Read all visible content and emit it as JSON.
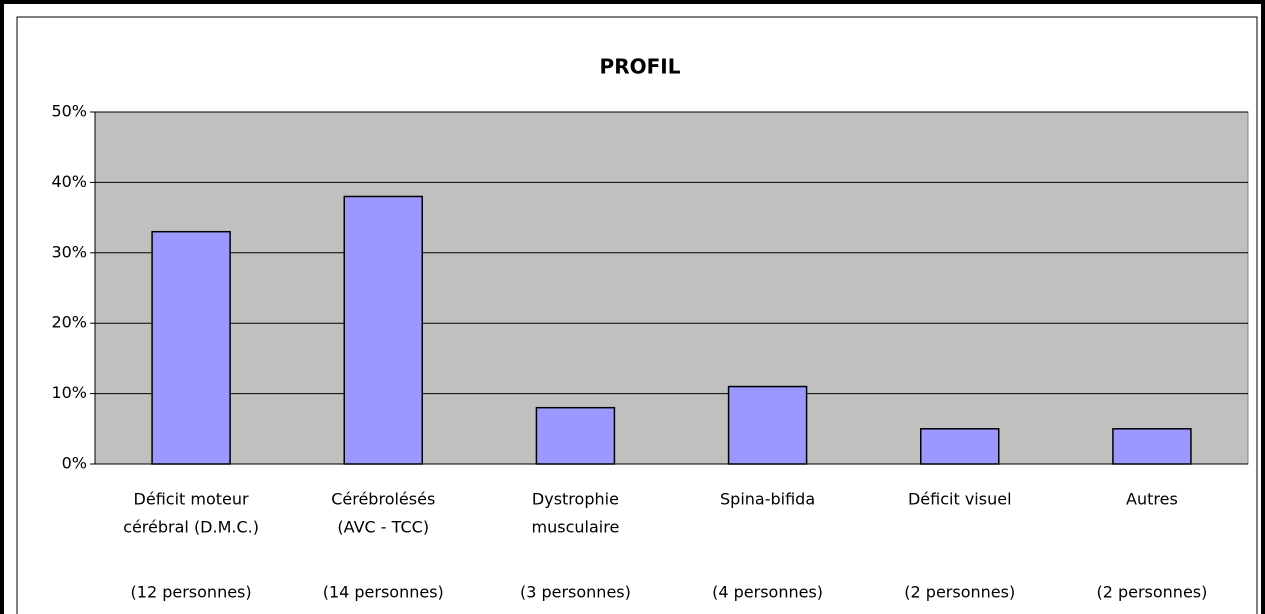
{
  "chart_data": {
    "type": "bar",
    "title": "PROFIL",
    "categories": [
      [
        "Déficit moteur",
        "cérébral (D.M.C.)",
        "(12 personnes)"
      ],
      [
        "Cérébrolésés",
        "(AVC - TCC)",
        "(14 personnes)"
      ],
      [
        "Dystrophie",
        "musculaire",
        "(3 personnes)"
      ],
      [
        "Spina-bifida",
        "(4 personnes)"
      ],
      [
        "Déficit visuel",
        "(2 personnes)"
      ],
      [
        "Autres",
        "(2 personnes)"
      ]
    ],
    "values": [
      33,
      38,
      8,
      11,
      5,
      5
    ],
    "color": "#9999ff",
    "ylim": [
      0,
      50
    ],
    "yticks": [
      {
        "value": 0,
        "label": "0%"
      },
      {
        "value": 10,
        "label": "10%"
      },
      {
        "value": 20,
        "label": "20%"
      },
      {
        "value": 30,
        "label": "30%"
      },
      {
        "value": 40,
        "label": "40%"
      },
      {
        "value": 50,
        "label": "50%"
      }
    ],
    "grid": true
  }
}
